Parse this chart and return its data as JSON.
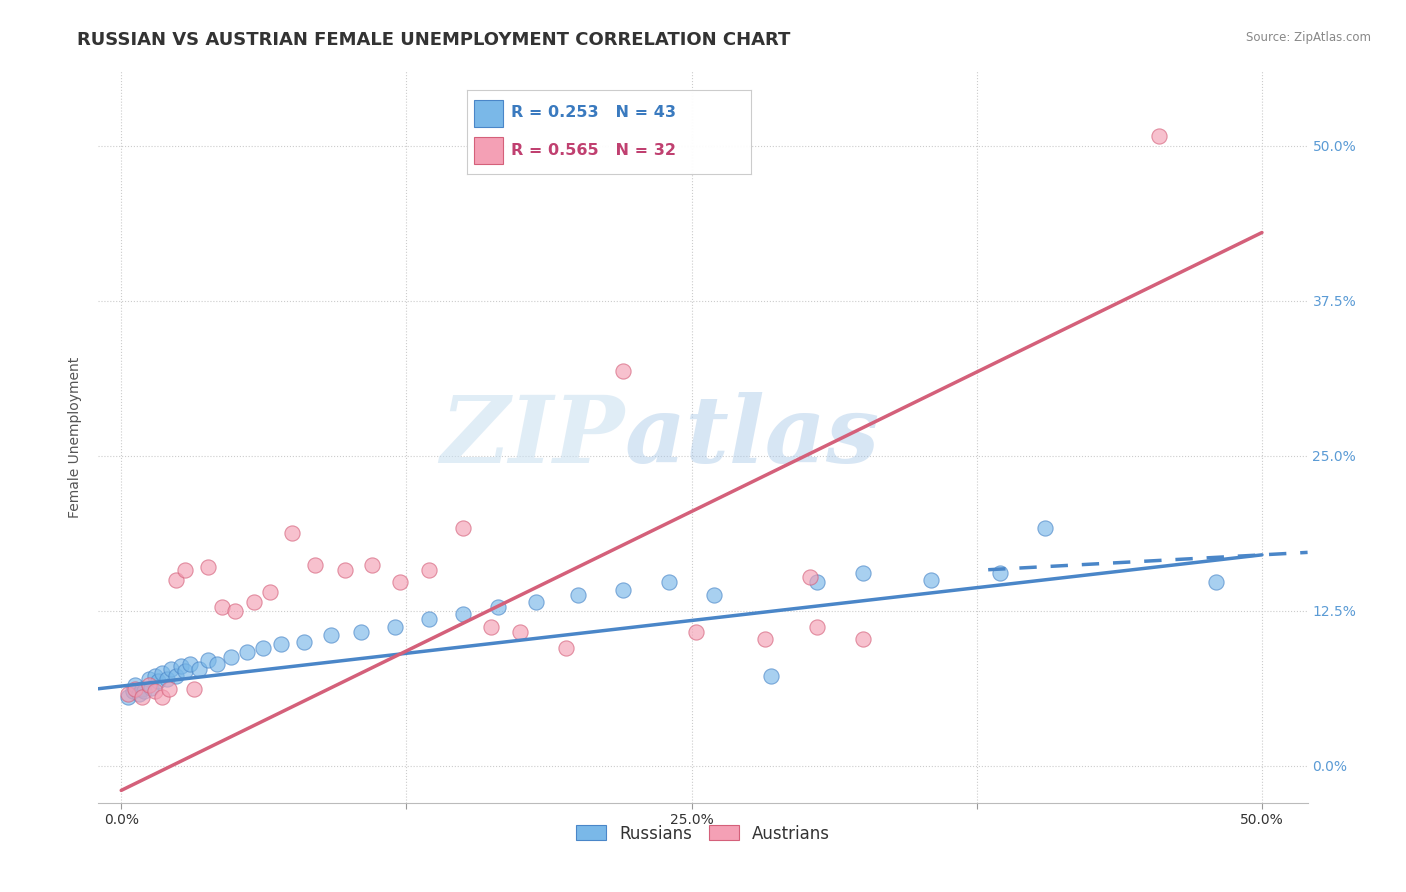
{
  "title": "RUSSIAN VS AUSTRIAN FEMALE UNEMPLOYMENT CORRELATION CHART",
  "source": "Source: ZipAtlas.com",
  "ylabel": "Female Unemployment",
  "xlim": [
    -0.01,
    0.52
  ],
  "ylim": [
    -0.03,
    0.56
  ],
  "xticks": [
    0.0,
    0.125,
    0.25,
    0.375,
    0.5
  ],
  "xtick_labels": [
    "0.0%",
    "",
    "25.0%",
    "",
    "50.0%"
  ],
  "ytick_positions_right": [
    0.0,
    0.125,
    0.25,
    0.375,
    0.5
  ],
  "ytick_labels_right": [
    "0.0%",
    "12.5%",
    "25.0%",
    "37.5%",
    "50.0%"
  ],
  "russian_color": "#7ab8e8",
  "russian_color_dark": "#4a86c8",
  "austrian_color": "#f4a0b5",
  "austrian_color_dark": "#d4607a",
  "russian_scatter": [
    [
      0.003,
      0.055
    ],
    [
      0.005,
      0.06
    ],
    [
      0.006,
      0.065
    ],
    [
      0.008,
      0.058
    ],
    [
      0.009,
      0.062
    ],
    [
      0.01,
      0.06
    ],
    [
      0.012,
      0.07
    ],
    [
      0.013,
      0.063
    ],
    [
      0.015,
      0.072
    ],
    [
      0.016,
      0.068
    ],
    [
      0.018,
      0.075
    ],
    [
      0.02,
      0.07
    ],
    [
      0.022,
      0.078
    ],
    [
      0.024,
      0.072
    ],
    [
      0.026,
      0.08
    ],
    [
      0.028,
      0.076
    ],
    [
      0.03,
      0.082
    ],
    [
      0.034,
      0.078
    ],
    [
      0.038,
      0.085
    ],
    [
      0.042,
      0.082
    ],
    [
      0.048,
      0.088
    ],
    [
      0.055,
      0.092
    ],
    [
      0.062,
      0.095
    ],
    [
      0.07,
      0.098
    ],
    [
      0.08,
      0.1
    ],
    [
      0.092,
      0.105
    ],
    [
      0.105,
      0.108
    ],
    [
      0.12,
      0.112
    ],
    [
      0.135,
      0.118
    ],
    [
      0.15,
      0.122
    ],
    [
      0.165,
      0.128
    ],
    [
      0.182,
      0.132
    ],
    [
      0.2,
      0.138
    ],
    [
      0.22,
      0.142
    ],
    [
      0.24,
      0.148
    ],
    [
      0.26,
      0.138
    ],
    [
      0.285,
      0.072
    ],
    [
      0.305,
      0.148
    ],
    [
      0.325,
      0.155
    ],
    [
      0.355,
      0.15
    ],
    [
      0.385,
      0.155
    ],
    [
      0.405,
      0.192
    ],
    [
      0.48,
      0.148
    ]
  ],
  "austrian_scatter": [
    [
      0.003,
      0.058
    ],
    [
      0.006,
      0.062
    ],
    [
      0.009,
      0.055
    ],
    [
      0.012,
      0.065
    ],
    [
      0.015,
      0.06
    ],
    [
      0.018,
      0.055
    ],
    [
      0.021,
      0.062
    ],
    [
      0.024,
      0.15
    ],
    [
      0.028,
      0.158
    ],
    [
      0.032,
      0.062
    ],
    [
      0.038,
      0.16
    ],
    [
      0.044,
      0.128
    ],
    [
      0.05,
      0.125
    ],
    [
      0.058,
      0.132
    ],
    [
      0.065,
      0.14
    ],
    [
      0.075,
      0.188
    ],
    [
      0.085,
      0.162
    ],
    [
      0.098,
      0.158
    ],
    [
      0.11,
      0.162
    ],
    [
      0.122,
      0.148
    ],
    [
      0.135,
      0.158
    ],
    [
      0.15,
      0.192
    ],
    [
      0.162,
      0.112
    ],
    [
      0.175,
      0.108
    ],
    [
      0.195,
      0.095
    ],
    [
      0.22,
      0.318
    ],
    [
      0.252,
      0.108
    ],
    [
      0.282,
      0.102
    ],
    [
      0.305,
      0.112
    ],
    [
      0.325,
      0.102
    ],
    [
      0.455,
      0.508
    ],
    [
      0.302,
      0.152
    ]
  ],
  "russian_line": {
    "x0": -0.01,
    "y0": 0.062,
    "x1": 0.5,
    "y1": 0.17
  },
  "russian_line_dashed": {
    "x0": 0.38,
    "y0": 0.158,
    "x1": 0.52,
    "y1": 0.172
  },
  "austrian_line": {
    "x0": 0.0,
    "y0": -0.02,
    "x1": 0.5,
    "y1": 0.43
  },
  "russian_R": "R = 0.253",
  "russian_N": "N = 43",
  "austrian_R": "R = 0.565",
  "austrian_N": "N = 32",
  "watermark_zip": "ZIP",
  "watermark_atlas": "atlas",
  "legend_label_russian": "Russians",
  "legend_label_austrian": "Austrians",
  "title_fontsize": 13,
  "axis_label_fontsize": 10,
  "tick_fontsize": 10,
  "legend_fontsize": 12
}
